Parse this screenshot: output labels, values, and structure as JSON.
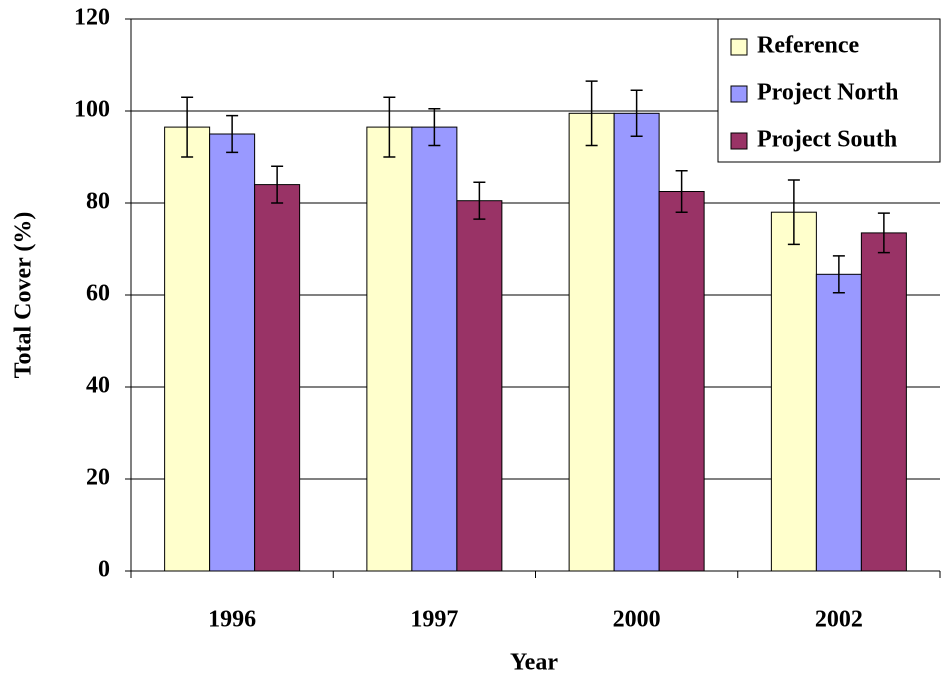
{
  "chart_data": {
    "type": "bar",
    "x_label": "Year",
    "y_label": "Total Cover (%)",
    "categories": [
      "1996",
      "1997",
      "2000",
      "2002"
    ],
    "series": [
      {
        "name": "Reference",
        "color": "#ffffcc",
        "values": [
          96.5,
          96.5,
          99.5,
          78
        ],
        "errors": [
          6.5,
          6.5,
          7,
          7
        ]
      },
      {
        "name": "Project North",
        "color": "#9999ff",
        "values": [
          95,
          96.5,
          99.5,
          64.5
        ],
        "errors": [
          4,
          4,
          5,
          4
        ]
      },
      {
        "name": "Project South",
        "color": "#993366",
        "values": [
          84,
          80.5,
          82.5,
          73.5
        ],
        "errors": [
          4,
          4,
          4.5,
          4.3
        ]
      }
    ],
    "ylim": [
      0,
      120
    ],
    "yticks": [
      0,
      20,
      40,
      60,
      80,
      100,
      120
    ],
    "grid": true,
    "legend": "top-right"
  }
}
